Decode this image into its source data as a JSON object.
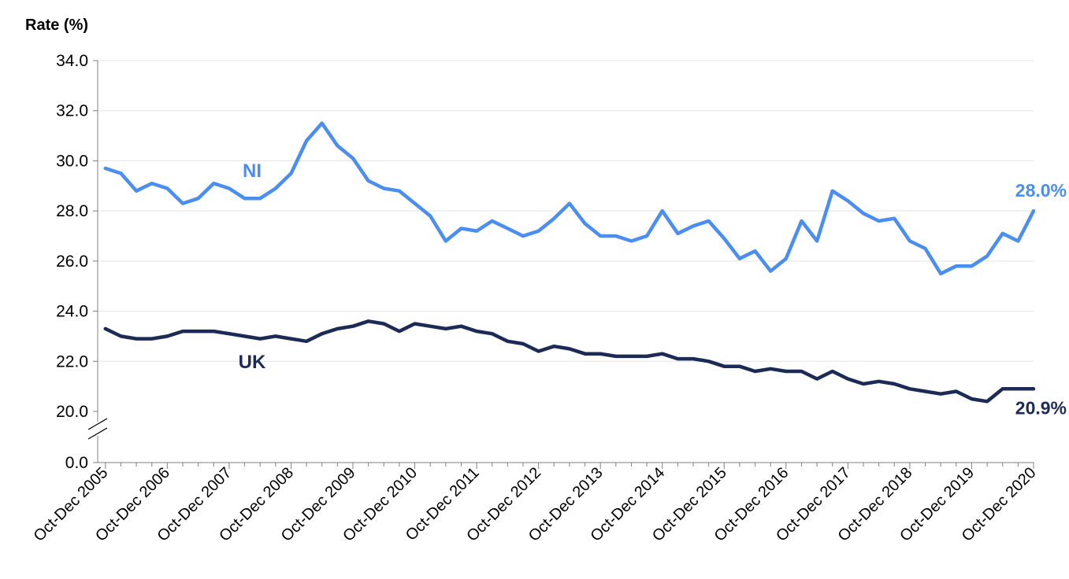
{
  "chart_data": {
    "type": "line",
    "ylabel": "Rate (%)",
    "y_ticks": [
      "0.0",
      "20.0",
      "22.0",
      "24.0",
      "26.0",
      "28.0",
      "30.0",
      "32.0",
      "34.0"
    ],
    "y_axis_break": {
      "below": 20.0,
      "bottom_value": 0.0
    },
    "ylim": [
      20,
      34
    ],
    "grid": true,
    "x_tick_labels": [
      "Oct-Dec 2005",
      "Oct-Dec 2006",
      "Oct-Dec 2007",
      "Oct-Dec 2008",
      "Oct-Dec 2009",
      "Oct-Dec 2010",
      "Oct-Dec 2011",
      "Oct-Dec 2012",
      "Oct-Dec 2013",
      "Oct-Dec 2014",
      "Oct-Dec 2015",
      "Oct-Dec 2016",
      "Oct-Dec 2017",
      "Oct-Dec 2018",
      "Oct-Dec 2019",
      "Oct-Dec 2020"
    ],
    "points_per_year": 4,
    "series": [
      {
        "name": "NI",
        "color": "#4a8ef0",
        "end_label": "28.0%",
        "values": [
          29.7,
          29.5,
          28.8,
          29.1,
          28.9,
          28.3,
          28.5,
          29.1,
          28.9,
          28.5,
          28.5,
          28.9,
          29.5,
          30.8,
          31.5,
          30.6,
          30.1,
          29.2,
          28.9,
          28.8,
          28.3,
          27.8,
          26.8,
          27.3,
          27.2,
          27.6,
          27.3,
          27.0,
          27.2,
          27.7,
          28.3,
          27.5,
          27.0,
          27.0,
          26.8,
          27.0,
          28.0,
          27.1,
          27.4,
          27.6,
          26.9,
          26.1,
          26.4,
          25.6,
          26.1,
          27.6,
          26.8,
          28.8,
          28.4,
          27.9,
          27.6,
          27.7,
          26.8,
          26.5,
          25.5,
          25.8,
          25.8,
          26.2,
          27.1,
          26.8,
          28.0
        ]
      },
      {
        "name": "UK",
        "color": "#1c2a56",
        "end_label": "20.9%",
        "values": [
          23.3,
          23.0,
          22.9,
          22.9,
          23.0,
          23.2,
          23.2,
          23.2,
          23.1,
          23.0,
          22.9,
          23.0,
          22.9,
          22.8,
          23.1,
          23.3,
          23.4,
          23.6,
          23.5,
          23.2,
          23.5,
          23.4,
          23.3,
          23.4,
          23.2,
          23.1,
          22.8,
          22.7,
          22.4,
          22.6,
          22.5,
          22.3,
          22.3,
          22.2,
          22.2,
          22.2,
          22.3,
          22.1,
          22.1,
          22.0,
          21.8,
          21.8,
          21.6,
          21.7,
          21.6,
          21.6,
          21.3,
          21.6,
          21.3,
          21.1,
          21.2,
          21.1,
          20.9,
          20.8,
          20.7,
          20.8,
          20.5,
          20.4,
          20.9,
          20.9,
          20.9
        ]
      }
    ]
  }
}
